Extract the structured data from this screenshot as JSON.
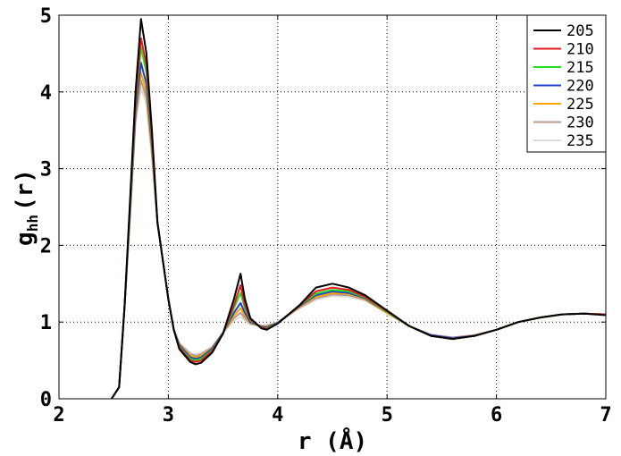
{
  "chart_data": {
    "type": "line",
    "xlabel": "r (Å)",
    "ylabel_main": "g",
    "ylabel_sub": "hh",
    "ylabel_tail": "(r)",
    "xlim": [
      2,
      7
    ],
    "ylim": [
      0,
      5
    ],
    "xticks": [
      2,
      3,
      4,
      5,
      6,
      7
    ],
    "yticks": [
      0,
      1,
      2,
      3,
      4,
      5
    ],
    "grid": true,
    "legend_position": "top-right",
    "series": [
      {
        "name": "205",
        "color": "#000000",
        "points": [
          [
            2.48,
            0
          ],
          [
            2.55,
            0.15
          ],
          [
            2.6,
            1.2
          ],
          [
            2.65,
            2.6
          ],
          [
            2.7,
            4.0
          ],
          [
            2.75,
            4.95
          ],
          [
            2.8,
            4.5
          ],
          [
            2.85,
            3.5
          ],
          [
            2.9,
            2.3
          ],
          [
            3.0,
            1.3
          ],
          [
            3.05,
            0.9
          ],
          [
            3.1,
            0.65
          ],
          [
            3.2,
            0.48
          ],
          [
            3.25,
            0.45
          ],
          [
            3.3,
            0.47
          ],
          [
            3.4,
            0.6
          ],
          [
            3.5,
            0.85
          ],
          [
            3.6,
            1.3
          ],
          [
            3.66,
            1.63
          ],
          [
            3.7,
            1.3
          ],
          [
            3.75,
            1.05
          ],
          [
            3.85,
            0.92
          ],
          [
            3.9,
            0.9
          ],
          [
            4.0,
            0.98
          ],
          [
            4.1,
            1.1
          ],
          [
            4.2,
            1.22
          ],
          [
            4.35,
            1.45
          ],
          [
            4.5,
            1.5
          ],
          [
            4.65,
            1.45
          ],
          [
            4.8,
            1.35
          ],
          [
            5.0,
            1.15
          ],
          [
            5.2,
            0.95
          ],
          [
            5.4,
            0.82
          ],
          [
            5.6,
            0.78
          ],
          [
            5.8,
            0.82
          ],
          [
            6.0,
            0.9
          ],
          [
            6.2,
            1.0
          ],
          [
            6.4,
            1.06
          ],
          [
            6.6,
            1.1
          ],
          [
            6.8,
            1.11
          ],
          [
            7.0,
            1.09
          ]
        ]
      },
      {
        "name": "210",
        "color": "#e41a1c",
        "points": [
          [
            2.48,
            0
          ],
          [
            2.55,
            0.15
          ],
          [
            2.6,
            1.2
          ],
          [
            2.65,
            2.55
          ],
          [
            2.7,
            3.9
          ],
          [
            2.75,
            4.7
          ],
          [
            2.8,
            4.35
          ],
          [
            2.85,
            3.4
          ],
          [
            2.9,
            2.3
          ],
          [
            3.0,
            1.3
          ],
          [
            3.05,
            0.9
          ],
          [
            3.1,
            0.67
          ],
          [
            3.2,
            0.5
          ],
          [
            3.25,
            0.48
          ],
          [
            3.3,
            0.5
          ],
          [
            3.4,
            0.62
          ],
          [
            3.5,
            0.85
          ],
          [
            3.6,
            1.22
          ],
          [
            3.66,
            1.48
          ],
          [
            3.7,
            1.22
          ],
          [
            3.75,
            1.03
          ],
          [
            3.85,
            0.93
          ],
          [
            3.9,
            0.91
          ],
          [
            4.0,
            0.98
          ],
          [
            4.1,
            1.1
          ],
          [
            4.2,
            1.22
          ],
          [
            4.35,
            1.4
          ],
          [
            4.5,
            1.45
          ],
          [
            4.65,
            1.42
          ],
          [
            4.8,
            1.33
          ],
          [
            5.0,
            1.14
          ],
          [
            5.2,
            0.95
          ],
          [
            5.4,
            0.82
          ],
          [
            5.6,
            0.78
          ],
          [
            5.8,
            0.82
          ],
          [
            6.0,
            0.9
          ],
          [
            6.2,
            1.0
          ],
          [
            6.4,
            1.06
          ],
          [
            6.6,
            1.1
          ],
          [
            6.8,
            1.11
          ],
          [
            7.0,
            1.1
          ]
        ]
      },
      {
        "name": "215",
        "color": "#22dd22",
        "points": [
          [
            2.48,
            0
          ],
          [
            2.55,
            0.15
          ],
          [
            2.6,
            1.2
          ],
          [
            2.65,
            2.5
          ],
          [
            2.7,
            3.85
          ],
          [
            2.75,
            4.58
          ],
          [
            2.8,
            4.25
          ],
          [
            2.85,
            3.35
          ],
          [
            2.9,
            2.3
          ],
          [
            3.0,
            1.3
          ],
          [
            3.05,
            0.9
          ],
          [
            3.1,
            0.68
          ],
          [
            3.2,
            0.52
          ],
          [
            3.25,
            0.5
          ],
          [
            3.3,
            0.52
          ],
          [
            3.4,
            0.63
          ],
          [
            3.5,
            0.85
          ],
          [
            3.6,
            1.18
          ],
          [
            3.66,
            1.38
          ],
          [
            3.7,
            1.18
          ],
          [
            3.75,
            1.02
          ],
          [
            3.85,
            0.93
          ],
          [
            3.9,
            0.92
          ],
          [
            4.0,
            0.98
          ],
          [
            4.1,
            1.1
          ],
          [
            4.2,
            1.22
          ],
          [
            4.35,
            1.37
          ],
          [
            4.5,
            1.42
          ],
          [
            4.65,
            1.4
          ],
          [
            4.8,
            1.32
          ],
          [
            5.0,
            1.13
          ],
          [
            5.2,
            0.95
          ],
          [
            5.4,
            0.82
          ],
          [
            5.6,
            0.78
          ],
          [
            5.8,
            0.82
          ],
          [
            6.0,
            0.9
          ],
          [
            6.2,
            1.0
          ],
          [
            6.4,
            1.06
          ],
          [
            6.6,
            1.1
          ],
          [
            6.8,
            1.11
          ],
          [
            7.0,
            1.1
          ]
        ]
      },
      {
        "name": "220",
        "color": "#1f3fd0",
        "points": [
          [
            2.48,
            0
          ],
          [
            2.55,
            0.15
          ],
          [
            2.6,
            1.2
          ],
          [
            2.65,
            2.45
          ],
          [
            2.7,
            3.75
          ],
          [
            2.75,
            4.38
          ],
          [
            2.8,
            4.1
          ],
          [
            2.85,
            3.3
          ],
          [
            2.9,
            2.3
          ],
          [
            3.0,
            1.3
          ],
          [
            3.05,
            0.9
          ],
          [
            3.1,
            0.7
          ],
          [
            3.2,
            0.54
          ],
          [
            3.25,
            0.52
          ],
          [
            3.3,
            0.54
          ],
          [
            3.4,
            0.65
          ],
          [
            3.5,
            0.86
          ],
          [
            3.6,
            1.12
          ],
          [
            3.66,
            1.25
          ],
          [
            3.7,
            1.12
          ],
          [
            3.75,
            1.0
          ],
          [
            3.85,
            0.94
          ],
          [
            3.9,
            0.93
          ],
          [
            4.0,
            0.99
          ],
          [
            4.1,
            1.1
          ],
          [
            4.2,
            1.21
          ],
          [
            4.35,
            1.35
          ],
          [
            4.5,
            1.4
          ],
          [
            4.65,
            1.38
          ],
          [
            4.8,
            1.31
          ],
          [
            5.0,
            1.13
          ],
          [
            5.2,
            0.95
          ],
          [
            5.4,
            0.83
          ],
          [
            5.6,
            0.79
          ],
          [
            5.8,
            0.82
          ],
          [
            6.0,
            0.9
          ],
          [
            6.2,
            1.0
          ],
          [
            6.4,
            1.06
          ],
          [
            6.6,
            1.1
          ],
          [
            6.8,
            1.11
          ],
          [
            7.0,
            1.1
          ]
        ]
      },
      {
        "name": "225",
        "color": "#ffa500",
        "points": [
          [
            2.48,
            0
          ],
          [
            2.55,
            0.15
          ],
          [
            2.6,
            1.2
          ],
          [
            2.65,
            2.42
          ],
          [
            2.7,
            3.7
          ],
          [
            2.75,
            4.25
          ],
          [
            2.8,
            4.0
          ],
          [
            2.85,
            3.25
          ],
          [
            2.9,
            2.3
          ],
          [
            3.0,
            1.3
          ],
          [
            3.05,
            0.9
          ],
          [
            3.1,
            0.71
          ],
          [
            3.2,
            0.56
          ],
          [
            3.25,
            0.54
          ],
          [
            3.3,
            0.56
          ],
          [
            3.4,
            0.66
          ],
          [
            3.5,
            0.86
          ],
          [
            3.6,
            1.08
          ],
          [
            3.66,
            1.18
          ],
          [
            3.7,
            1.08
          ],
          [
            3.75,
            0.99
          ],
          [
            3.85,
            0.94
          ],
          [
            3.9,
            0.94
          ],
          [
            4.0,
            0.99
          ],
          [
            4.1,
            1.1
          ],
          [
            4.2,
            1.2
          ],
          [
            4.35,
            1.33
          ],
          [
            4.5,
            1.38
          ],
          [
            4.65,
            1.37
          ],
          [
            4.8,
            1.3
          ],
          [
            5.0,
            1.12
          ],
          [
            5.2,
            0.95
          ],
          [
            5.4,
            0.83
          ],
          [
            5.6,
            0.79
          ],
          [
            5.8,
            0.82
          ],
          [
            6.0,
            0.9
          ],
          [
            6.2,
            1.0
          ],
          [
            6.4,
            1.06
          ],
          [
            6.6,
            1.1
          ],
          [
            6.8,
            1.11
          ],
          [
            7.0,
            1.1
          ]
        ]
      },
      {
        "name": "230",
        "color": "#b89a8a",
        "points": [
          [
            2.48,
            0
          ],
          [
            2.55,
            0.15
          ],
          [
            2.6,
            1.2
          ],
          [
            2.65,
            2.4
          ],
          [
            2.7,
            3.65
          ],
          [
            2.75,
            4.15
          ],
          [
            2.8,
            3.92
          ],
          [
            2.85,
            3.2
          ],
          [
            2.9,
            2.3
          ],
          [
            3.0,
            1.3
          ],
          [
            3.05,
            0.9
          ],
          [
            3.1,
            0.72
          ],
          [
            3.2,
            0.58
          ],
          [
            3.25,
            0.56
          ],
          [
            3.3,
            0.58
          ],
          [
            3.4,
            0.67
          ],
          [
            3.5,
            0.86
          ],
          [
            3.6,
            1.05
          ],
          [
            3.66,
            1.12
          ],
          [
            3.7,
            1.05
          ],
          [
            3.75,
            0.98
          ],
          [
            3.85,
            0.95
          ],
          [
            3.9,
            0.95
          ],
          [
            4.0,
            0.99
          ],
          [
            4.1,
            1.09
          ],
          [
            4.2,
            1.19
          ],
          [
            4.35,
            1.31
          ],
          [
            4.5,
            1.36
          ],
          [
            4.65,
            1.35
          ],
          [
            4.8,
            1.29
          ],
          [
            5.0,
            1.12
          ],
          [
            5.2,
            0.95
          ],
          [
            5.4,
            0.83
          ],
          [
            5.6,
            0.8
          ],
          [
            5.8,
            0.83
          ],
          [
            6.0,
            0.9
          ],
          [
            6.2,
            1.0
          ],
          [
            6.4,
            1.06
          ],
          [
            6.6,
            1.1
          ],
          [
            6.8,
            1.11
          ],
          [
            7.0,
            1.1
          ]
        ]
      },
      {
        "name": "235",
        "color": "#dcdcdc",
        "points": [
          [
            2.48,
            0
          ],
          [
            2.55,
            0.15
          ],
          [
            2.6,
            1.2
          ],
          [
            2.65,
            2.38
          ],
          [
            2.7,
            3.6
          ],
          [
            2.75,
            4.05
          ],
          [
            2.8,
            3.85
          ],
          [
            2.85,
            3.15
          ],
          [
            2.9,
            2.3
          ],
          [
            3.0,
            1.3
          ],
          [
            3.05,
            0.9
          ],
          [
            3.1,
            0.73
          ],
          [
            3.2,
            0.6
          ],
          [
            3.25,
            0.58
          ],
          [
            3.3,
            0.6
          ],
          [
            3.4,
            0.68
          ],
          [
            3.5,
            0.86
          ],
          [
            3.6,
            1.02
          ],
          [
            3.66,
            1.07
          ],
          [
            3.7,
            1.02
          ],
          [
            3.75,
            0.97
          ],
          [
            3.85,
            0.95
          ],
          [
            3.9,
            0.96
          ],
          [
            4.0,
            1.0
          ],
          [
            4.1,
            1.09
          ],
          [
            4.2,
            1.18
          ],
          [
            4.35,
            1.29
          ],
          [
            4.5,
            1.34
          ],
          [
            4.65,
            1.33
          ],
          [
            4.8,
            1.28
          ],
          [
            5.0,
            1.11
          ],
          [
            5.2,
            0.95
          ],
          [
            5.4,
            0.84
          ],
          [
            5.6,
            0.8
          ],
          [
            5.8,
            0.83
          ],
          [
            6.0,
            0.9
          ],
          [
            6.2,
            1.0
          ],
          [
            6.4,
            1.06
          ],
          [
            6.6,
            1.1
          ],
          [
            6.8,
            1.11
          ],
          [
            7.0,
            1.1
          ]
        ]
      }
    ]
  }
}
